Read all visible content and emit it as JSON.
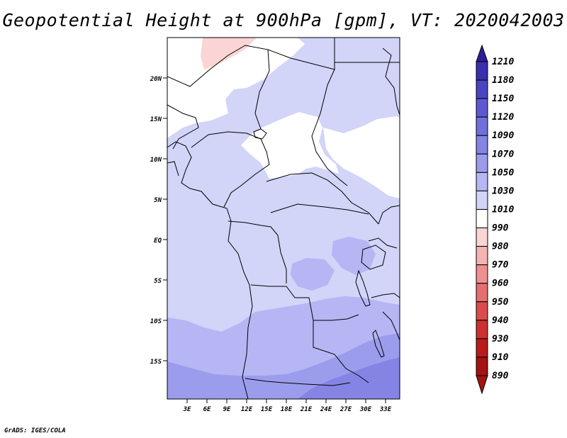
{
  "title": "Geopotential Height at 900hPa [gpm], VT: 2020042003",
  "footer": "GrADS: IGES/COLA",
  "map": {
    "lat_labels": [
      "20N",
      "15N",
      "10N",
      "5N",
      "EQ",
      "5S",
      "10S",
      "15S"
    ],
    "lon_labels": [
      "3E",
      "6E",
      "9E",
      "12E",
      "15E",
      "18E",
      "21E",
      "24E",
      "27E",
      "30E",
      "33E"
    ]
  },
  "colorbar": {
    "labels": [
      "1210",
      "1180",
      "1150",
      "1120",
      "1090",
      "1070",
      "1050",
      "1030",
      "1010",
      "990",
      "980",
      "970",
      "960",
      "950",
      "940",
      "930",
      "910",
      "890"
    ],
    "colors": [
      "#2d1e96",
      "#3a30ae",
      "#4a44c2",
      "#5c5ad2",
      "#7070dc",
      "#8584e4",
      "#9c9ced",
      "#b6b6f4",
      "#d2d4f8",
      "#ffffff",
      "#fbd5d5",
      "#f5b4b4",
      "#ef9090",
      "#e56e6e",
      "#da4c4c",
      "#cc3030",
      "#b81c1c",
      "#a41212"
    ]
  }
}
